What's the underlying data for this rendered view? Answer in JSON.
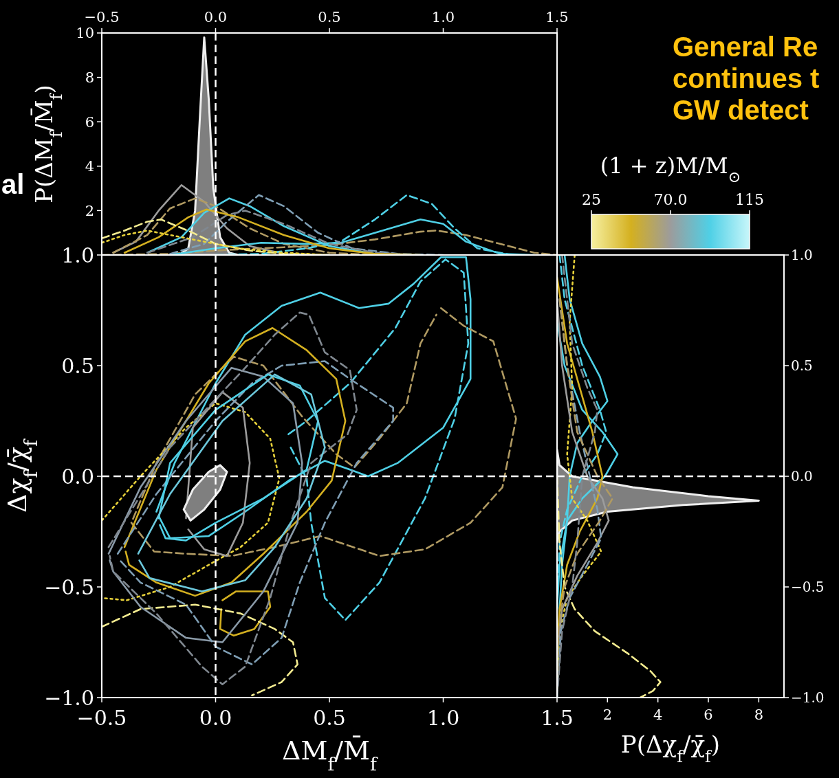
{
  "chart_data": [
    {
      "type": "line",
      "ylabel": "P(ΔM$_{f}$/M̄$_{f}$)",
      "xlim": [
        -0.5,
        1.5
      ],
      "xticks": [
        {
          "value": -0.5,
          "label": "−0.5"
        },
        {
          "value": 0,
          "label": "0.0"
        },
        0.5,
        {
          "value": 1,
          "label": "1.0"
        },
        1.5
      ],
      "ylim": [
        0,
        10
      ],
      "yticks": [
        2,
        4,
        6,
        8,
        10
      ],
      "clabel": "(1 + z)M/M$_{⊙}$",
      "clim": [
        25,
        115
      ],
      "cticks": [
        25,
        {
          "value": 70,
          "label": "70.0"
        },
        115
      ],
      "colors": [
        "#f6f0a0",
        "#d4b020",
        "#9c9c9c",
        "#4fd0e6",
        "#c8f6fa"
      ],
      "annotations": [
        "General Re",
        "continues t",
        "GW detect",
        "al"
      ],
      "ref_lines": [
        {
          "axis": "x",
          "value": 0,
          "color": "#ffffff",
          "line_style": "dashed"
        }
      ],
      "series": [
        {
          "type": "area",
          "color": "#7f7f7f",
          "x": [
            -0.16,
            -0.12,
            -0.09,
            -0.07,
            -0.05,
            -0.03,
            -0.01,
            0.02,
            0.06,
            0.1
          ],
          "values": [
            0,
            0.3,
            2,
            6,
            9.8,
            7,
            3,
            0.8,
            0.1,
            0
          ]
        },
        {
          "color": "#9c9c9c",
          "line_style": "solid",
          "x": [
            -0.45,
            -0.35,
            -0.25,
            -0.15,
            -0.05,
            0.05,
            0.15,
            0.3,
            0.5
          ],
          "values": [
            0.1,
            0.6,
            2,
            3.15,
            2.4,
            1.2,
            0.4,
            0.05,
            0
          ]
        },
        {
          "color": "#b09a62",
          "line_style": "dashed",
          "x": [
            -0.45,
            -0.3,
            -0.2,
            -0.09,
            0,
            0.15,
            0.3,
            0.5,
            0.7
          ],
          "values": [
            0.1,
            0.9,
            2.1,
            2.55,
            2.2,
            1.2,
            0.5,
            0.1,
            0
          ]
        },
        {
          "color": "#b09a62",
          "line_style": "dashed",
          "x": [
            -0.5,
            -0.2,
            0,
            0.3,
            0.5,
            0.7,
            0.9,
            0.97,
            1.1,
            1.25,
            1.4,
            1.5
          ],
          "values": [
            0,
            0.05,
            0.2,
            0.35,
            0.45,
            0.7,
            1.05,
            1.1,
            0.9,
            0.5,
            0.1,
            0
          ]
        },
        {
          "color": "#4fd0e6",
          "line_style": "dashed",
          "x": [
            0,
            0.2,
            0.4,
            0.55,
            0.7,
            0.84,
            0.95,
            1.05,
            1.15,
            1.3
          ],
          "values": [
            0,
            0.05,
            0.3,
            0.6,
            1.6,
            2.7,
            2.3,
            1.2,
            0.3,
            0
          ]
        },
        {
          "color": "#4fd0e6",
          "line_style": "solid",
          "x": [
            -0.2,
            0,
            0.2,
            0.4,
            0.55,
            0.7,
            0.9,
            1,
            1.1,
            1.25,
            1.4
          ],
          "values": [
            0,
            0.3,
            0.55,
            0.5,
            0.55,
            1,
            1.6,
            1.4,
            0.6,
            0.05,
            0
          ]
        },
        {
          "color": "#4fd0e6",
          "line_style": "solid",
          "x": [
            -0.3,
            -0.15,
            -0.05,
            0.06,
            0.15,
            0.3,
            0.5,
            0.7,
            0.9
          ],
          "values": [
            0.1,
            0.8,
            1.9,
            2.55,
            2.2,
            1.3,
            0.4,
            0.05,
            0
          ]
        },
        {
          "color": "#7f9fb5",
          "line_style": "dashed",
          "x": [
            -0.2,
            -0.05,
            0.05,
            0.19,
            0.3,
            0.45,
            0.6,
            0.8,
            1
          ],
          "values": [
            0.05,
            0.5,
            1.5,
            2.7,
            2.2,
            1,
            0.3,
            0.05,
            0
          ]
        },
        {
          "color": "#808890",
          "line_style": "dashed",
          "x": [
            -0.3,
            -0.1,
            0.05,
            0.13,
            0.3,
            0.5,
            0.7,
            0.9
          ],
          "values": [
            0.1,
            0.8,
            1.8,
            2,
            1.4,
            0.5,
            0.1,
            0
          ]
        },
        {
          "color": "#d4b020",
          "line_style": "solid",
          "x": [
            -0.4,
            -0.25,
            -0.12,
            -0.04,
            0.1,
            0.3,
            0.5,
            0.7,
            0.9
          ],
          "values": [
            0.1,
            0.8,
            1.7,
            2.05,
            1.7,
            0.9,
            0.3,
            0.05,
            0
          ]
        },
        {
          "color": "#f4ec90",
          "line_style": "dashed",
          "x": [
            -0.5,
            -0.4,
            -0.3,
            -0.24,
            -0.1,
            0,
            0.15,
            0.3,
            0.5
          ],
          "values": [
            0.75,
            1.1,
            1.5,
            1.6,
            1,
            0.5,
            0.2,
            0.05,
            0
          ]
        },
        {
          "color": "#e6d03a",
          "line_style": "dotted",
          "x": [
            -0.5,
            -0.4,
            -0.3,
            -0.2,
            -0.05,
            0.1,
            0.3,
            0.5
          ],
          "values": [
            0.55,
            0.9,
            1.1,
            0.9,
            0.6,
            0.3,
            0.1,
            0
          ]
        }
      ]
    },
    {
      "type": "line",
      "xlabel": "ΔM$_{f}$/M̄$_{f}$",
      "ylabel": "Δχ$_{f}$/χ̄$_{f}$",
      "xlim": [
        -0.5,
        1.5
      ],
      "xticks": [
        {
          "value": -0.5,
          "label": "−0.5"
        },
        {
          "value": 0,
          "label": "0.0"
        },
        0.5,
        {
          "value": 1,
          "label": "1.0"
        },
        1.5
      ],
      "ylim": [
        -1,
        1
      ],
      "yticks": [
        {
          "value": -1,
          "label": "−1.0"
        },
        {
          "value": -0.5,
          "label": "−0.5"
        },
        {
          "value": 0,
          "label": "0.0"
        },
        0.5,
        {
          "value": 1,
          "label": "1.0"
        }
      ],
      "ref_lines": [
        {
          "axis": "x",
          "value": 0,
          "color": "#ffffff",
          "line_style": "dashed"
        },
        {
          "axis": "y",
          "value": 0,
          "color": "#ffffff",
          "line_style": "dashed"
        }
      ],
      "series": [
        {
          "color": "#4fd0e6",
          "line_style": "solid",
          "x": [
            -0.26,
            -0.18,
            0,
            0.13,
            0.29,
            0.46,
            0.63,
            0.76,
            0.87,
            0.99,
            1.1,
            1.12,
            1.12,
            1,
            0.8,
            0.67,
            0.59,
            0.48,
            0.32,
            0.13,
            -0.03,
            -0.2,
            -0.25
          ],
          "values": [
            -0.16,
            0.06,
            0.42,
            0.64,
            0.77,
            0.83,
            0.76,
            0.78,
            0.87,
            0.99,
            0.99,
            0.8,
            0.44,
            0.22,
            0.06,
            0,
            0.03,
            0.07,
            -0.02,
            -0.16,
            -0.27,
            -0.28,
            -0.18
          ]
        },
        {
          "color": "#4fd0e6",
          "line_style": "dashed",
          "x": [
            0.32,
            0.4,
            0.59,
            0.79,
            0.9,
            1.01,
            1.09,
            1.11,
            1.05,
            0.92,
            0.72,
            0.57,
            0.48,
            0.42,
            0.4,
            0.33
          ],
          "values": [
            0.19,
            0.25,
            0.42,
            0.67,
            0.88,
            0.98,
            0.92,
            0.6,
            0.26,
            -0.1,
            -0.48,
            -0.65,
            -0.55,
            -0.21,
            -0.01,
            0.13
          ]
        },
        {
          "color": "#b09a62",
          "line_style": "dashed",
          "x": [
            0.99,
            1.09,
            1.22,
            1.32,
            1.26,
            1.12,
            0.92,
            0.72,
            0.46,
            0.26,
            0.07,
            -0.13,
            -0.27,
            -0.37,
            -0.26,
            -0.09,
            0.08,
            0.21,
            0.38,
            0.53,
            0.61,
            0.72,
            0.84,
            0.9,
            0.97
          ],
          "values": [
            0.76,
            0.68,
            0.61,
            0.26,
            -0.05,
            -0.21,
            -0.33,
            -0.36,
            -0.27,
            -0.32,
            -0.36,
            -0.35,
            -0.34,
            -0.21,
            0.06,
            0.37,
            0.54,
            0.5,
            0.27,
            0.1,
            0.04,
            0.17,
            0.33,
            0.6,
            0.73
          ]
        },
        {
          "color": "#d4b020",
          "line_style": "solid",
          "x": [
            -0.4,
            -0.26,
            -0.03,
            0.13,
            0.25,
            0.4,
            0.53,
            0.57,
            0.51,
            0.4,
            0.21,
            0.07,
            -0.09,
            -0.26,
            -0.38,
            -0.395
          ],
          "values": [
            -0.32,
            0.03,
            0.42,
            0.61,
            0.67,
            0.57,
            0.44,
            0.25,
            -0.02,
            -0.16,
            -0.35,
            -0.48,
            -0.54,
            -0.48,
            -0.4,
            -0.34
          ]
        },
        {
          "color": "#d4b020",
          "line_style": "solid",
          "x": [
            0.03,
            0.09,
            0.23,
            0.24,
            0.17,
            0.08,
            0.02,
            0.025
          ],
          "values": [
            -0.56,
            -0.52,
            -0.52,
            -0.59,
            -0.69,
            -0.72,
            -0.69,
            -0.6
          ]
        },
        {
          "color": "#e6d03a",
          "line_style": "dotted",
          "x": [
            -0.5,
            -0.33,
            -0.13,
            0,
            0.13,
            0.24,
            0.28,
            0.23,
            0.11,
            -0.03,
            -0.2,
            -0.39,
            -0.5
          ],
          "values": [
            -0.2,
            0,
            0.22,
            0.33,
            0.29,
            0.17,
            -0.01,
            -0.21,
            -0.32,
            -0.4,
            -0.5,
            -0.56,
            -0.55
          ]
        },
        {
          "color": "#f4ec90",
          "line_style": "dashed",
          "x": [
            -0.5,
            -0.33,
            -0.09,
            0.11,
            0.26,
            0.34,
            0.36,
            0.29,
            0.16
          ],
          "values": [
            -0.68,
            -0.6,
            -0.58,
            -0.62,
            -0.69,
            -0.75,
            -0.85,
            -0.93,
            -0.99
          ]
        },
        {
          "color": "#9c9c9c",
          "line_style": "solid",
          "x": [
            -0.13,
            -0.1,
            0.03,
            0.12,
            0.15,
            0.12,
            0.05,
            -0.05,
            -0.12
          ],
          "values": [
            -0.19,
            0.22,
            0.38,
            0.31,
            0.06,
            -0.21,
            -0.36,
            -0.33,
            -0.24
          ]
        },
        {
          "color": "#8a9aa8",
          "line_style": "solid",
          "x": [
            -0.47,
            -0.33,
            -0.13,
            0.07,
            0.21,
            0.34,
            0.38,
            0.36,
            0.21,
            0.03,
            -0.13,
            -0.33,
            -0.45,
            -0.465
          ],
          "values": [
            -0.35,
            -0.05,
            0.25,
            0.49,
            0.45,
            0.33,
            0.06,
            -0.21,
            -0.52,
            -0.75,
            -0.73,
            -0.59,
            -0.43,
            -0.38
          ]
        },
        {
          "color": "#7f9fb5",
          "line_style": "dashed",
          "x": [
            -0.43,
            -0.26,
            0,
            0.16,
            0.29,
            0.48,
            0.59,
            0.78,
            0.78,
            0.62,
            0.48,
            0.37,
            0.29,
            0.16,
            0,
            -0.13,
            -0.33,
            -0.42
          ],
          "values": [
            -0.35,
            -0.08,
            0.25,
            0.42,
            0.5,
            0.52,
            0.44,
            0.31,
            0.25,
            0.06,
            -0.21,
            -0.48,
            -0.73,
            -0.85,
            -0.77,
            -0.58,
            -0.48,
            -0.38
          ]
        },
        {
          "color": "#808890",
          "line_style": "dashed",
          "x": [
            -0.47,
            -0.2,
            0.13,
            0.26,
            0.37,
            0.41,
            0.48,
            0.59,
            0.62,
            0.58,
            0.42,
            0.33,
            0.24,
            0.13,
            0.03,
            -0.06,
            -0.26,
            -0.45,
            -0.465
          ],
          "values": [
            -0.32,
            0.13,
            0.49,
            0.64,
            0.74,
            0.73,
            0.56,
            0.48,
            0.3,
            0.19,
            0.06,
            -0.21,
            -0.55,
            -0.86,
            -0.94,
            -0.86,
            -0.62,
            -0.43,
            -0.36
          ]
        },
        {
          "color": "#4fd0e6",
          "line_style": "solid",
          "x": [
            -0.25,
            -0.2,
            0,
            0.23,
            0.37,
            0.45,
            0.4,
            0.21,
            0,
            -0.13,
            -0.22,
            -0.245
          ],
          "values": [
            -0.19,
            0.06,
            0.3,
            0.46,
            0.41,
            0.25,
            0.03,
            -0.1,
            -0.21,
            -0.29,
            -0.28,
            -0.22
          ]
        },
        {
          "color": "#6cc8dc",
          "line_style": "solid",
          "x": [
            -0.34,
            -0.2,
            0.03,
            0.26,
            0.42,
            0.48,
            0.4,
            0.26,
            0.13,
            -0.06,
            -0.29,
            -0.335
          ],
          "values": [
            -0.35,
            -0.08,
            0.25,
            0.46,
            0.37,
            0.13,
            -0.1,
            -0.32,
            -0.47,
            -0.52,
            -0.46,
            -0.38
          ]
        },
        {
          "type": "area",
          "color": "#7f7f7f",
          "x": [
            -0.11,
            -0.14,
            -0.1,
            -0.03,
            0.02,
            0.05,
            0.02,
            -0.05,
            -0.11
          ],
          "values": [
            -0.2,
            -0.15,
            -0.06,
            0.02,
            0.05,
            0.02,
            -0.06,
            -0.15,
            -0.2
          ]
        }
      ]
    },
    {
      "type": "line",
      "xlabel": "P(Δχ$_{f}$/χ̄$_{f}$)",
      "xlim": [
        0,
        9
      ],
      "xticks": [
        2,
        4,
        6,
        8
      ],
      "y2lim": [
        -1,
        1
      ],
      "y2ticks": [
        {
          "value": -1,
          "label": "−1.0"
        },
        {
          "value": -0.5,
          "label": "−0.5"
        },
        {
          "value": 0,
          "label": "0.0"
        },
        0.5,
        {
          "value": 1,
          "label": "1.0"
        }
      ],
      "ref_lines": [
        {
          "axis": "y2",
          "value": 0,
          "color": "#ffffff",
          "line_style": "dashed"
        }
      ],
      "series": [
        {
          "type": "area",
          "axis": "y2",
          "color": "#7f7f7f",
          "x": [
            0,
            0.1,
            0.6,
            3,
            6,
            8,
            5,
            2,
            0.6,
            0.1,
            0
          ],
          "values": [
            0.12,
            0.05,
            0,
            -0.05,
            -0.09,
            -0.11,
            -0.13,
            -0.16,
            -0.2,
            -0.25,
            -0.3
          ]
        },
        {
          "axis": "y2",
          "color": "#4fd0e6",
          "line_style": "solid",
          "x": [
            0.3,
            0.5,
            1,
            1.7,
            2,
            1.4,
            0.8,
            0.5,
            0.4,
            0.2,
            0.1,
            0
          ],
          "values": [
            1,
            0.8,
            0.6,
            0.45,
            0.34,
            0.25,
            0.15,
            0,
            -0.2,
            -0.4,
            -0.6,
            -1
          ]
        },
        {
          "axis": "y2",
          "color": "#4fd0e6",
          "line_style": "solid",
          "x": [
            0,
            0.3,
            1,
            1.8,
            2.4,
            1.9,
            1,
            0.4,
            0.1,
            0
          ],
          "values": [
            0.7,
            0.5,
            0.3,
            0.2,
            0.1,
            0,
            -0.1,
            -0.2,
            -0.4,
            -0.6
          ]
        },
        {
          "axis": "y2",
          "color": "#4fd0e6",
          "line_style": "dashed",
          "x": [
            0.1,
            0.3,
            1,
            1.7,
            1.95,
            1.6,
            1,
            0.4,
            0.1,
            0
          ],
          "values": [
            1,
            0.8,
            0.5,
            0.3,
            0.2,
            0.1,
            0,
            -0.15,
            -0.3,
            -0.6
          ]
        },
        {
          "axis": "y2",
          "color": "#d4b020",
          "line_style": "solid",
          "x": [
            0,
            0.4,
            0.9,
            1.4,
            1.8,
            1.6,
            0.9,
            0.4,
            0.1,
            0
          ],
          "values": [
            0.9,
            0.6,
            0.4,
            0.2,
            0,
            -0.1,
            -0.25,
            -0.4,
            -0.6,
            -0.8
          ]
        },
        {
          "axis": "y2",
          "color": "#e6d03a",
          "line_style": "dotted",
          "x": [
            0.7,
            0.5,
            0.6,
            0.4,
            0.6,
            1.2,
            1.75,
            1,
            0.4,
            0.1,
            0
          ],
          "values": [
            1,
            0.7,
            0.4,
            0.1,
            -0.1,
            -0.2,
            -0.34,
            -0.45,
            -0.55,
            -0.7,
            -0.9
          ]
        },
        {
          "axis": "y2",
          "color": "#f4ec90",
          "line_style": "dashed",
          "x": [
            0,
            0.1,
            0.3,
            0.7,
            1.5,
            2.8,
            3.7,
            4.1,
            3.8,
            3.3
          ],
          "values": [
            0,
            -0.3,
            -0.5,
            -0.6,
            -0.7,
            -0.8,
            -0.88,
            -0.93,
            -0.97,
            -1
          ]
        },
        {
          "axis": "y2",
          "color": "#9c9c9c",
          "line_style": "solid",
          "x": [
            0,
            0.2,
            0.6,
            1.2,
            1.8,
            2.05,
            1.6,
            0.8,
            0.2,
            0
          ],
          "values": [
            0.8,
            0.5,
            0.2,
            0,
            -0.1,
            -0.2,
            -0.3,
            -0.45,
            -0.6,
            -0.8
          ]
        },
        {
          "axis": "y2",
          "color": "#7f9fb5",
          "line_style": "dashed",
          "x": [
            0.1,
            0.4,
            0.9,
            1.3,
            1.6,
            1.75,
            1.2,
            0.5,
            0.15,
            0
          ],
          "values": [
            0.8,
            0.5,
            0.2,
            0,
            -0.15,
            -0.28,
            -0.4,
            -0.55,
            -0.7,
            -1
          ]
        },
        {
          "axis": "y2",
          "color": "#b09a62",
          "line_style": "dashed",
          "x": [
            0.1,
            0.4,
            0.8,
            1.6,
            2.2,
            1.7,
            0.8,
            0.3,
            0.05,
            0
          ],
          "values": [
            0.8,
            0.5,
            0.2,
            0,
            -0.1,
            -0.2,
            -0.35,
            -0.5,
            -0.7,
            -1
          ]
        },
        {
          "axis": "y2",
          "color": "#808890",
          "line_style": "dashed",
          "x": [
            0.2,
            0.6,
            1.2,
            1.6,
            1.5,
            1,
            0.8,
            0.6,
            0.2,
            0
          ],
          "values": [
            1,
            0.6,
            0.4,
            0.3,
            0.2,
            0,
            -0.3,
            -0.5,
            -0.7,
            -1
          ]
        }
      ]
    }
  ]
}
